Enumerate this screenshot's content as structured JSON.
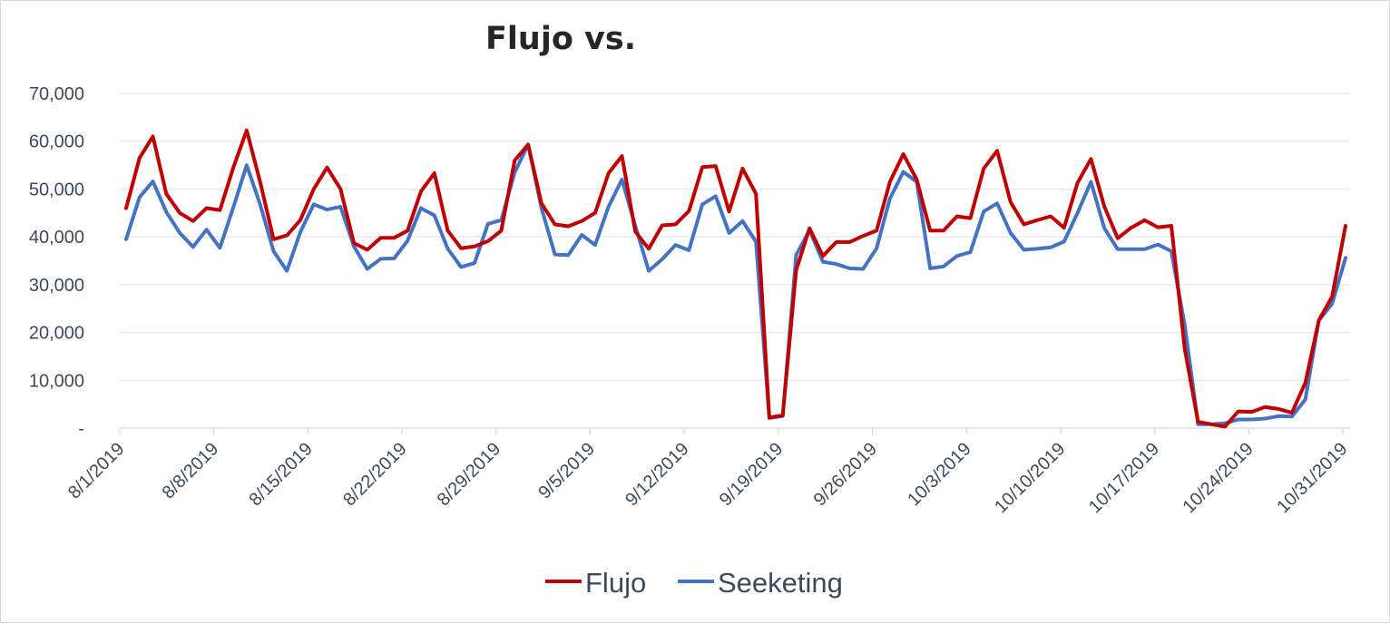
{
  "chart_data": {
    "type": "line",
    "title": "Flujo vs.",
    "xlabel": "",
    "ylabel": "",
    "ylim": [
      0,
      70000
    ],
    "yticks": [
      0,
      10000,
      20000,
      30000,
      40000,
      50000,
      60000,
      70000
    ],
    "ytick_labels": [
      "-",
      "10,000",
      "20,000",
      "30,000",
      "40,000",
      "50,000",
      "60,000",
      "70,000"
    ],
    "x_start": "8/1/2019",
    "x_end": "10/31/2019",
    "xtick_labels": [
      "8/1/2019",
      "8/8/2019",
      "8/15/2019",
      "8/22/2019",
      "8/29/2019",
      "9/5/2019",
      "9/12/2019",
      "9/19/2019",
      "9/26/2019",
      "10/3/2019",
      "10/10/2019",
      "10/17/2019",
      "10/24/2019",
      "10/31/2019"
    ],
    "grid": true,
    "legend_position": "bottom",
    "series": [
      {
        "name": "Flujo",
        "color": "#c00000",
        "values": [
          46000,
          56500,
          61000,
          49000,
          45000,
          43300,
          46000,
          45600,
          54500,
          62300,
          51500,
          39500,
          40300,
          43500,
          50000,
          54500,
          50000,
          38700,
          37300,
          39800,
          39800,
          41300,
          49500,
          53300,
          41300,
          37600,
          38000,
          39100,
          41300,
          56000,
          59300,
          47000,
          42600,
          42200,
          43300,
          45000,
          53300,
          56900,
          41100,
          37500,
          42400,
          42600,
          45400,
          54600,
          54800,
          45300,
          54300,
          49000,
          2200,
          2700,
          33000,
          41800,
          36000,
          38900,
          38900,
          40200,
          41300,
          51500,
          57300,
          52000,
          41300,
          41300,
          44300,
          43900,
          54300,
          58000,
          47300,
          42600,
          43500,
          44300,
          41900,
          51300,
          56300,
          46300,
          39700,
          41900,
          43500,
          42000,
          42300,
          16500,
          1300,
          800,
          300,
          3500,
          3400,
          4400,
          4000,
          3200,
          9500,
          22500,
          27500,
          42300
        ]
      },
      {
        "name": "Seeketing",
        "color": "#4472c4",
        "values": [
          39500,
          48300,
          51600,
          45200,
          40800,
          37900,
          41500,
          37700,
          46200,
          55000,
          46800,
          37000,
          32900,
          41000,
          46800,
          45700,
          46300,
          38000,
          33300,
          35400,
          35500,
          39200,
          46000,
          44500,
          37500,
          33700,
          34500,
          42700,
          43500,
          53500,
          59300,
          46000,
          36300,
          36200,
          40400,
          38300,
          46300,
          52000,
          42300,
          32900,
          35300,
          38300,
          37200,
          46800,
          48500,
          40800,
          43300,
          39000,
          2100,
          2500,
          36200,
          41400,
          34800,
          34300,
          33400,
          33300,
          37600,
          48000,
          53600,
          51500,
          33400,
          33800,
          36000,
          36800,
          45300,
          47000,
          40800,
          37300,
          37500,
          37800,
          39000,
          45000,
          51500,
          41800,
          37400,
          37400,
          37400,
          38400,
          37000,
          21500,
          800,
          800,
          1000,
          1800,
          1800,
          2000,
          2500,
          2400,
          6000,
          22500,
          26000,
          35600
        ]
      }
    ]
  }
}
